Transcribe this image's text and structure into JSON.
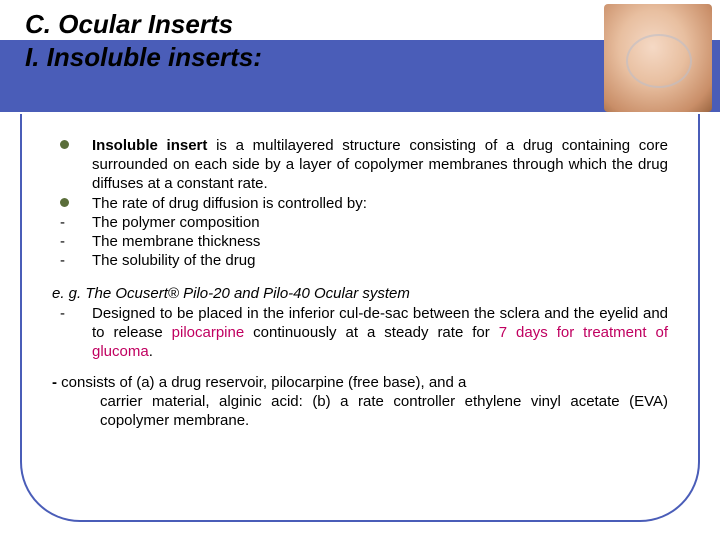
{
  "colors": {
    "header_band": "#4a5db8",
    "frame_border": "#4a5db8",
    "bullet": "#5a6e3a",
    "hot_text": "#c00060",
    "text": "#000000",
    "background": "#ffffff"
  },
  "typography": {
    "title_fontsize": 26,
    "body_fontsize": 15,
    "font_family": "Arial"
  },
  "title": {
    "line1": "C. Ocular Inserts",
    "line2": "I. Insoluble inserts:"
  },
  "bullets": [
    {
      "marker": "dot",
      "bold_lead": "Insoluble insert",
      "rest": " is a multilayered structure consisting of a drug containing core surrounded on each side by a layer of copolymer membranes through which the drug diffuses at a constant rate."
    },
    {
      "marker": "dot",
      "text": "The rate of drug diffusion is controlled by:"
    },
    {
      "marker": "dash",
      "text": "The polymer composition"
    },
    {
      "marker": "dash",
      "text": "The membrane thickness"
    },
    {
      "marker": "dash",
      "text": "The solubility of the drug"
    }
  ],
  "example": {
    "heading": "e. g. The Ocusert® Pilo-20 and Pilo-40 Ocular system",
    "item_prefix": "Designed to be placed in the inferior cul-de-sac between the sclera and the eyelid and to release ",
    "hot1": "pilocarpine",
    "mid": " continuously at a steady rate for ",
    "hot2": "7 days for treatment of glucoma",
    "suffix": "."
  },
  "final": {
    "lead": "- ",
    "line1": "consists of (a) a drug reservoir, pilocarpine (free base), and a",
    "line2": "carrier material, alginic acid: (b) a rate controller ethylene vinyl acetate (EVA) copolymer membrane."
  }
}
